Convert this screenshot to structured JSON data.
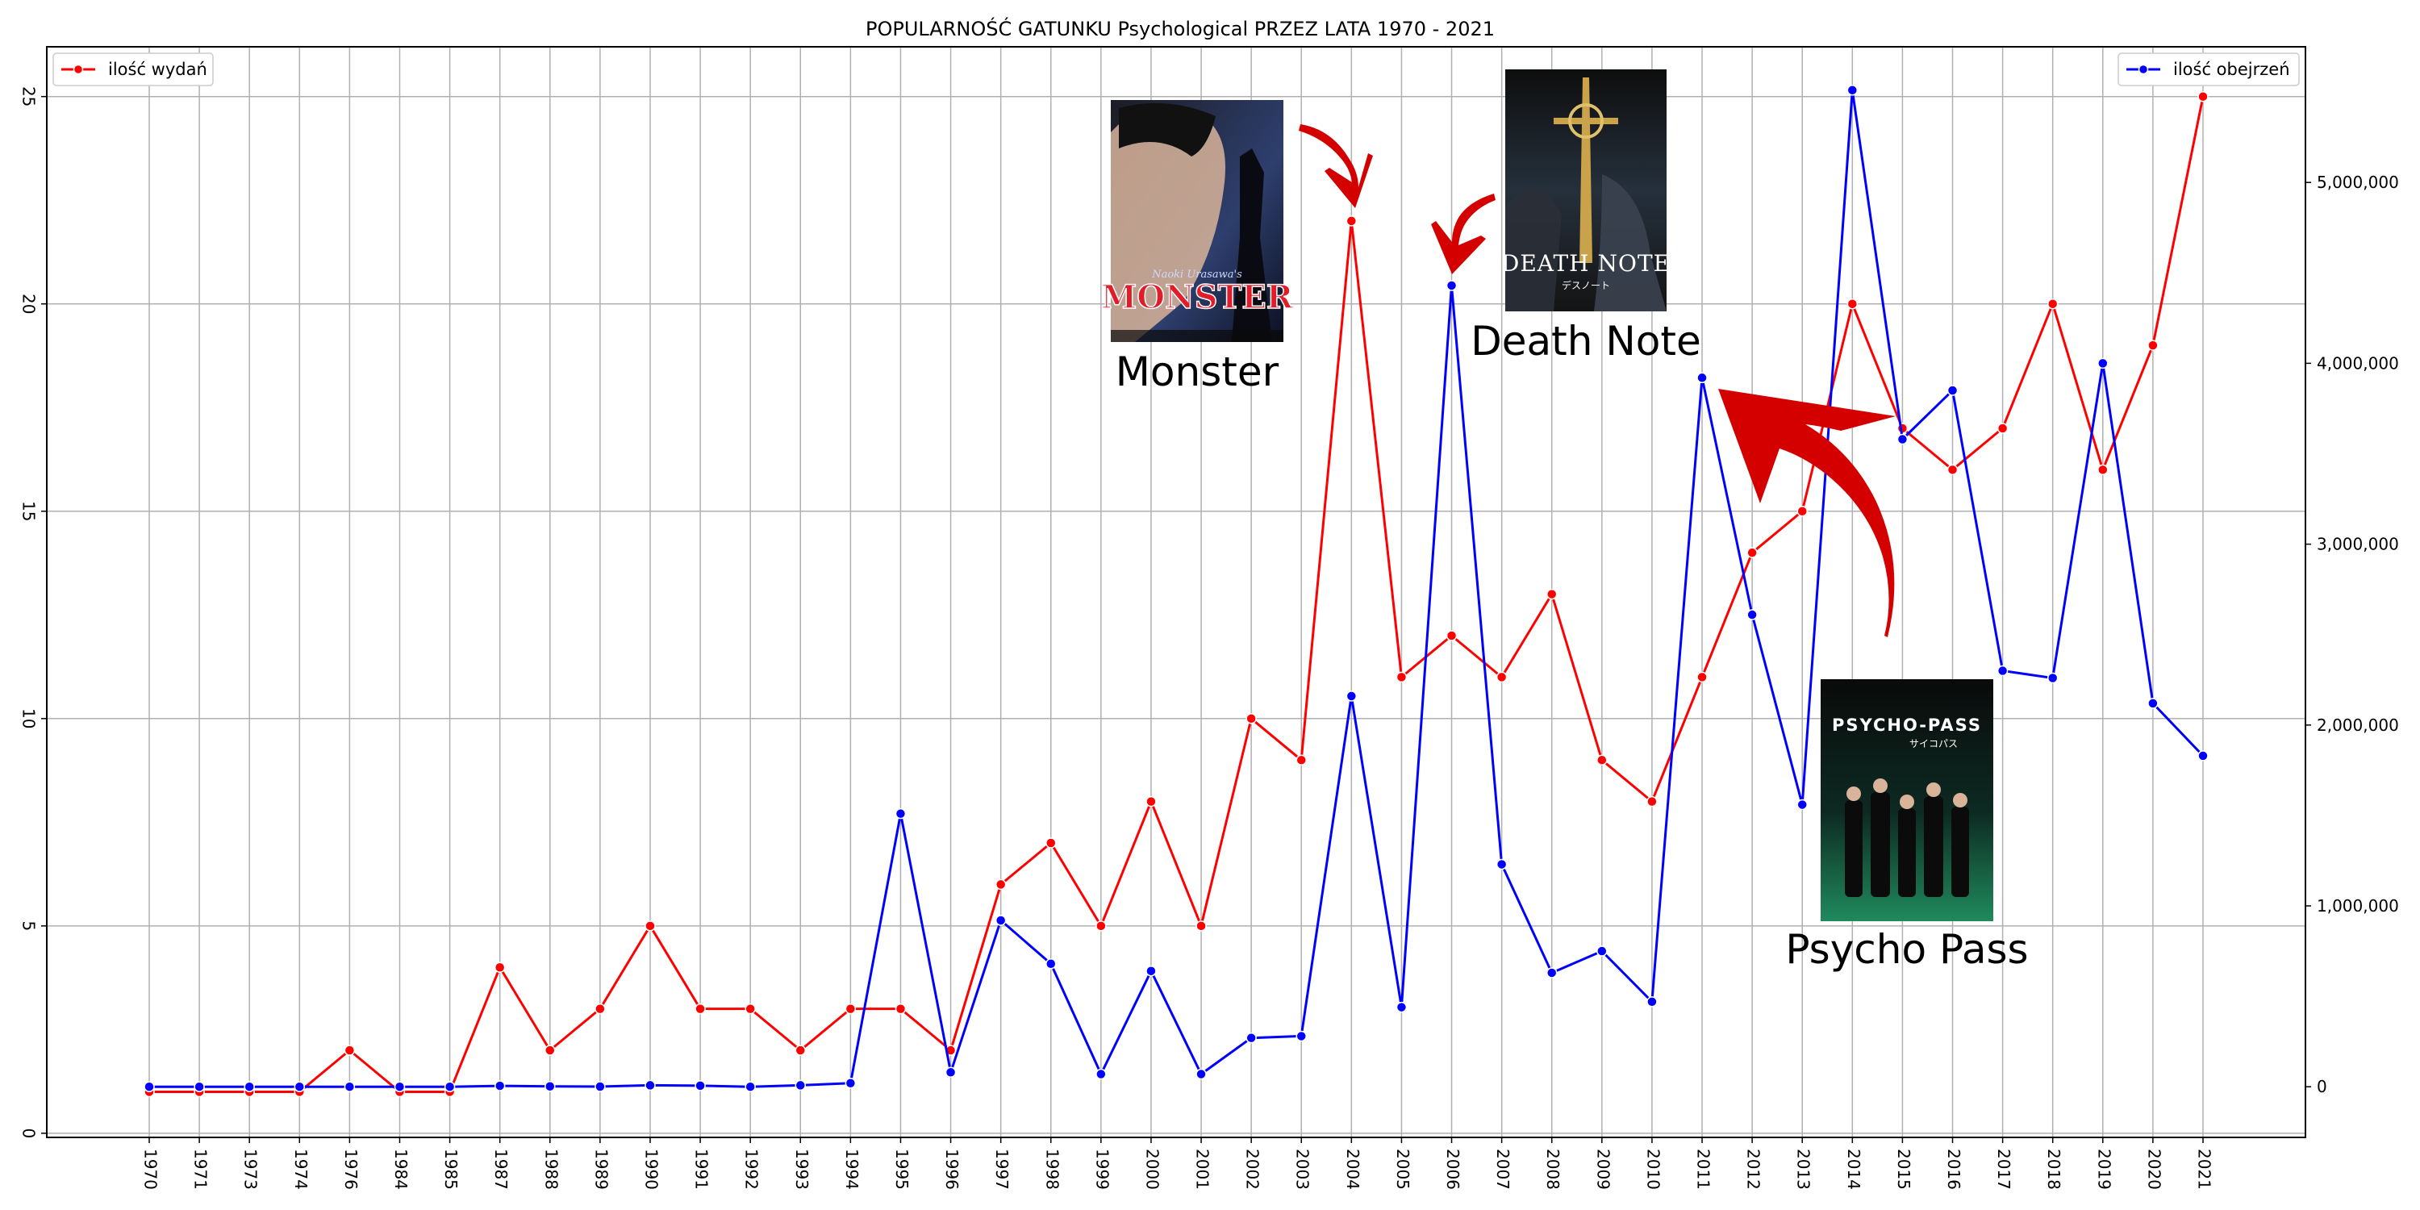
{
  "chart_data": {
    "type": "line",
    "title": "POPULARNOŚĆ GATUNKU Psychological PRZEZ LATA 1970 - 2021",
    "xlabel": "",
    "ylabel": "",
    "y2label": "",
    "grid": true,
    "categories": [
      "1970",
      "1971",
      "1973",
      "1974",
      "1976",
      "1984",
      "1985",
      "1987",
      "1988",
      "1989",
      "1990",
      "1991",
      "1992",
      "1993",
      "1994",
      "1995",
      "1996",
      "1997",
      "1998",
      "1999",
      "2000",
      "2001",
      "2002",
      "2003",
      "2004",
      "2005",
      "2006",
      "2007",
      "2008",
      "2009",
      "2010",
      "2011",
      "2012",
      "2013",
      "2014",
      "2015",
      "2016",
      "2017",
      "2018",
      "2019",
      "2020",
      "2021"
    ],
    "left_axis": {
      "ylim": [
        -0.1,
        26.2
      ],
      "ticks": [
        0,
        5,
        10,
        15,
        20,
        25
      ]
    },
    "right_axis": {
      "ylim": [
        -280000,
        5750000
      ],
      "ticks": [
        0,
        1000000,
        2000000,
        3000000,
        4000000,
        5000000
      ],
      "tick_labels": [
        "0",
        "1,000,000",
        "2,000,000",
        "3,000,000",
        "4,000,000",
        "5,000,000"
      ]
    },
    "series": [
      {
        "name": "ilość wydań",
        "axis": "left",
        "color": "#ff0000",
        "legend_position": "top-left",
        "values": [
          1,
          1,
          1,
          1,
          2,
          1,
          1,
          4,
          2,
          3,
          5,
          3,
          3,
          2,
          3,
          3,
          2,
          6,
          7,
          5,
          8,
          5,
          10,
          9,
          22,
          11,
          12,
          11,
          13,
          9,
          8,
          11,
          14,
          15,
          20,
          17,
          16,
          17,
          20,
          16,
          19,
          25
        ]
      },
      {
        "name": "ilość obejrzeń",
        "axis": "right",
        "color": "#0000ff",
        "legend_position": "top-right",
        "values": [
          0,
          0,
          0,
          0,
          0,
          0,
          0,
          5000,
          2000,
          1000,
          8000,
          6000,
          0,
          8000,
          20000,
          1510000,
          80000,
          920000,
          680000,
          70000,
          640000,
          70000,
          270000,
          280000,
          2160000,
          440000,
          4430000,
          1230000,
          630000,
          750000,
          470000,
          3920000,
          2610000,
          1560000,
          5510000,
          3580000,
          3850000,
          2300000,
          2260000,
          4000000,
          2120000,
          1830000
        ]
      }
    ],
    "annotations": [
      {
        "label": "Monster",
        "points_to": "2004",
        "icon": "monster-poster-image"
      },
      {
        "label": "Death Note",
        "points_to": "2006",
        "icon": "death-note-poster-image"
      },
      {
        "label": "Psycho Pass",
        "points_to": "2011",
        "icon": "psycho-pass-poster-image"
      }
    ],
    "poster_text": {
      "monster_author": "Naoki Urasawa's",
      "monster_title": "MONSTER",
      "death_note_title": "DEATH NOTE",
      "death_note_jp": "デスノート",
      "psycho_pass_title": "PSYCHO-PASS",
      "psycho_pass_jp": "サイコパス"
    }
  }
}
